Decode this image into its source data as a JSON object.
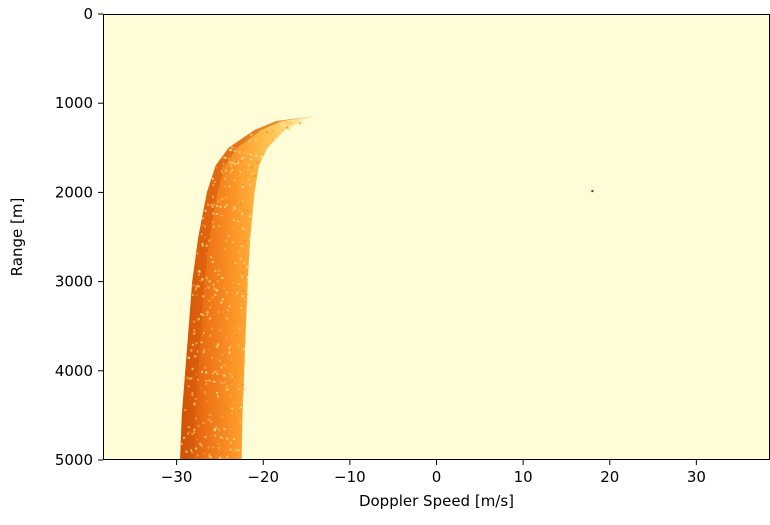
{
  "chart_data": {
    "type": "heatmap",
    "title": "",
    "xlabel": "Doppler Speed [m/s]",
    "ylabel": "Range [m]",
    "xlim": [
      -38.5,
      38.5
    ],
    "ylim": [
      5000,
      0
    ],
    "y_inverted": true,
    "grid": false,
    "legend": "none",
    "colormap": "YlOrBr",
    "background_color": "#fffdd8",
    "x_ticks": [
      -30,
      -20,
      -10,
      0,
      10,
      20,
      30
    ],
    "x_tick_labels": [
      "−30",
      "−20",
      "−10",
      "0",
      "10",
      "20",
      "30"
    ],
    "y_ticks": [
      0,
      1000,
      2000,
      3000,
      4000,
      5000
    ],
    "y_tick_labels": [
      "0",
      "1000",
      "2000",
      "3000",
      "4000",
      "5000"
    ],
    "heat_region": {
      "description_points": [
        {
          "range": 1150,
          "left_edge_speed": -14.5,
          "right_edge_speed": -14.0
        },
        {
          "range": 1200,
          "left_edge_speed": -18.5,
          "right_edge_speed": -15.5
        },
        {
          "range": 1300,
          "left_edge_speed": -21.0,
          "right_edge_speed": -17.5
        },
        {
          "range": 1500,
          "left_edge_speed": -24.0,
          "right_edge_speed": -19.5
        },
        {
          "range": 1700,
          "left_edge_speed": -25.5,
          "right_edge_speed": -20.5
        },
        {
          "range": 2000,
          "left_edge_speed": -26.5,
          "right_edge_speed": -21.0
        },
        {
          "range": 2500,
          "left_edge_speed": -27.5,
          "right_edge_speed": -21.5
        },
        {
          "range": 3000,
          "left_edge_speed": -28.2,
          "right_edge_speed": -21.8
        },
        {
          "range": 3500,
          "left_edge_speed": -28.6,
          "right_edge_speed": -22.0
        },
        {
          "range": 4000,
          "left_edge_speed": -29.0,
          "right_edge_speed": -22.2
        },
        {
          "range": 4500,
          "left_edge_speed": -29.4,
          "right_edge_speed": -22.4
        },
        {
          "range": 5000,
          "left_edge_speed": -29.6,
          "right_edge_speed": -22.5
        }
      ]
    },
    "isolated_point": {
      "speed": 18.0,
      "range": 1985
    }
  }
}
